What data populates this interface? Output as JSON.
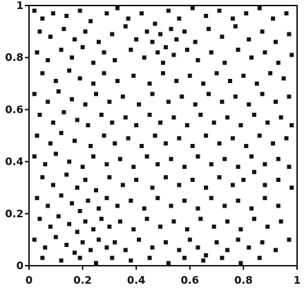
{
  "chart_data": {
    "type": "scatter",
    "title": "",
    "xlabel": "",
    "ylabel": "",
    "xlim": [
      0,
      1
    ],
    "ylim": [
      0,
      1
    ],
    "grid": false,
    "legend": "none",
    "marker_color": "#111111",
    "x_ticks": [
      {
        "value": 0,
        "label": "0"
      },
      {
        "value": 0.2,
        "label": "0.2"
      },
      {
        "value": 0.4,
        "label": "0.4"
      },
      {
        "value": 0.6,
        "label": "0.6"
      },
      {
        "value": 0.8,
        "label": "0.8"
      },
      {
        "value": 1,
        "label": "1"
      }
    ],
    "y_ticks": [
      {
        "value": 0,
        "label": "0"
      },
      {
        "value": 0.2,
        "label": "0.2"
      },
      {
        "value": 0.4,
        "label": "0.4"
      },
      {
        "value": 0.6,
        "label": "0.6"
      },
      {
        "value": 0.8,
        "label": "0.8"
      },
      {
        "value": 1,
        "label": "1"
      }
    ],
    "series": [
      {
        "points": [
          [
            0.02,
            0.98
          ],
          [
            0.05,
            0.95
          ],
          [
            0.09,
            0.97
          ],
          [
            0.14,
            0.96
          ],
          [
            0.19,
            0.98
          ],
          [
            0.23,
            0.94
          ],
          [
            0.29,
            0.97
          ],
          [
            0.33,
            0.99
          ],
          [
            0.37,
            0.95
          ],
          [
            0.42,
            0.97
          ],
          [
            0.47,
            0.93
          ],
          [
            0.52,
            0.98
          ],
          [
            0.56,
            0.95
          ],
          [
            0.61,
            0.99
          ],
          [
            0.66,
            0.96
          ],
          [
            0.71,
            0.98
          ],
          [
            0.76,
            0.95
          ],
          [
            0.81,
            0.97
          ],
          [
            0.86,
            0.99
          ],
          [
            0.91,
            0.95
          ],
          [
            0.96,
            0.97
          ],
          [
            0.04,
            0.9
          ],
          [
            0.08,
            0.88
          ],
          [
            0.13,
            0.91
          ],
          [
            0.17,
            0.87
          ],
          [
            0.21,
            0.9
          ],
          [
            0.26,
            0.86
          ],
          [
            0.31,
            0.89
          ],
          [
            0.36,
            0.92
          ],
          [
            0.4,
            0.87
          ],
          [
            0.44,
            0.9
          ],
          [
            0.46,
            0.86
          ],
          [
            0.49,
            0.89
          ],
          [
            0.51,
            0.84
          ],
          [
            0.53,
            0.91
          ],
          [
            0.55,
            0.87
          ],
          [
            0.58,
            0.9
          ],
          [
            0.62,
            0.86
          ],
          [
            0.67,
            0.91
          ],
          [
            0.72,
            0.88
          ],
          [
            0.77,
            0.92
          ],
          [
            0.82,
            0.87
          ],
          [
            0.87,
            0.9
          ],
          [
            0.92,
            0.86
          ],
          [
            0.97,
            0.89
          ],
          [
            0.03,
            0.82
          ],
          [
            0.07,
            0.79
          ],
          [
            0.12,
            0.83
          ],
          [
            0.16,
            0.8
          ],
          [
            0.2,
            0.84
          ],
          [
            0.24,
            0.78
          ],
          [
            0.28,
            0.82
          ],
          [
            0.32,
            0.79
          ],
          [
            0.38,
            0.83
          ],
          [
            0.43,
            0.8
          ],
          [
            0.48,
            0.82
          ],
          [
            0.5,
            0.78
          ],
          [
            0.54,
            0.81
          ],
          [
            0.59,
            0.83
          ],
          [
            0.63,
            0.79
          ],
          [
            0.68,
            0.82
          ],
          [
            0.73,
            0.78
          ],
          [
            0.78,
            0.83
          ],
          [
            0.83,
            0.8
          ],
          [
            0.88,
            0.82
          ],
          [
            0.93,
            0.78
          ],
          [
            0.98,
            0.81
          ],
          [
            0.05,
            0.74
          ],
          [
            0.1,
            0.71
          ],
          [
            0.15,
            0.75
          ],
          [
            0.19,
            0.72
          ],
          [
            0.24,
            0.7
          ],
          [
            0.28,
            0.74
          ],
          [
            0.33,
            0.71
          ],
          [
            0.39,
            0.73
          ],
          [
            0.45,
            0.7
          ],
          [
            0.5,
            0.74
          ],
          [
            0.55,
            0.71
          ],
          [
            0.6,
            0.73
          ],
          [
            0.65,
            0.7
          ],
          [
            0.7,
            0.74
          ],
          [
            0.75,
            0.71
          ],
          [
            0.8,
            0.73
          ],
          [
            0.85,
            0.7
          ],
          [
            0.9,
            0.74
          ],
          [
            0.95,
            0.72
          ],
          [
            0.02,
            0.66
          ],
          [
            0.07,
            0.63
          ],
          [
            0.11,
            0.67
          ],
          [
            0.16,
            0.64
          ],
          [
            0.21,
            0.62
          ],
          [
            0.25,
            0.66
          ],
          [
            0.3,
            0.63
          ],
          [
            0.35,
            0.65
          ],
          [
            0.41,
            0.62
          ],
          [
            0.46,
            0.66
          ],
          [
            0.52,
            0.63
          ],
          [
            0.57,
            0.65
          ],
          [
            0.62,
            0.62
          ],
          [
            0.67,
            0.66
          ],
          [
            0.72,
            0.63
          ],
          [
            0.77,
            0.65
          ],
          [
            0.82,
            0.62
          ],
          [
            0.87,
            0.66
          ],
          [
            0.92,
            0.63
          ],
          [
            0.97,
            0.65
          ],
          [
            0.04,
            0.58
          ],
          [
            0.09,
            0.55
          ],
          [
            0.13,
            0.59
          ],
          [
            0.18,
            0.56
          ],
          [
            0.22,
            0.54
          ],
          [
            0.27,
            0.58
          ],
          [
            0.31,
            0.55
          ],
          [
            0.36,
            0.57
          ],
          [
            0.4,
            0.54
          ],
          [
            0.45,
            0.58
          ],
          [
            0.49,
            0.55
          ],
          [
            0.54,
            0.57
          ],
          [
            0.59,
            0.54
          ],
          [
            0.64,
            0.58
          ],
          [
            0.69,
            0.55
          ],
          [
            0.74,
            0.57
          ],
          [
            0.79,
            0.54
          ],
          [
            0.84,
            0.58
          ],
          [
            0.89,
            0.55
          ],
          [
            0.94,
            0.57
          ],
          [
            0.98,
            0.54
          ],
          [
            0.03,
            0.5
          ],
          [
            0.08,
            0.47
          ],
          [
            0.12,
            0.51
          ],
          [
            0.17,
            0.48
          ],
          [
            0.23,
            0.46
          ],
          [
            0.28,
            0.5
          ],
          [
            0.32,
            0.47
          ],
          [
            0.37,
            0.49
          ],
          [
            0.42,
            0.46
          ],
          [
            0.47,
            0.5
          ],
          [
            0.51,
            0.47
          ],
          [
            0.56,
            0.49
          ],
          [
            0.61,
            0.46
          ],
          [
            0.66,
            0.5
          ],
          [
            0.71,
            0.47
          ],
          [
            0.76,
            0.49
          ],
          [
            0.81,
            0.46
          ],
          [
            0.86,
            0.5
          ],
          [
            0.91,
            0.47
          ],
          [
            0.96,
            0.49
          ],
          [
            0.02,
            0.42
          ],
          [
            0.06,
            0.39
          ],
          [
            0.1,
            0.43
          ],
          [
            0.15,
            0.4
          ],
          [
            0.2,
            0.38
          ],
          [
            0.24,
            0.42
          ],
          [
            0.29,
            0.39
          ],
          [
            0.34,
            0.41
          ],
          [
            0.39,
            0.38
          ],
          [
            0.44,
            0.42
          ],
          [
            0.48,
            0.39
          ],
          [
            0.53,
            0.41
          ],
          [
            0.58,
            0.38
          ],
          [
            0.63,
            0.42
          ],
          [
            0.68,
            0.39
          ],
          [
            0.73,
            0.41
          ],
          [
            0.78,
            0.38
          ],
          [
            0.83,
            0.42
          ],
          [
            0.88,
            0.39
          ],
          [
            0.93,
            0.41
          ],
          [
            0.97,
            0.38
          ],
          [
            0.05,
            0.34
          ],
          [
            0.09,
            0.31
          ],
          [
            0.14,
            0.35
          ],
          [
            0.18,
            0.3
          ],
          [
            0.21,
            0.33
          ],
          [
            0.25,
            0.29
          ],
          [
            0.3,
            0.34
          ],
          [
            0.35,
            0.31
          ],
          [
            0.4,
            0.33
          ],
          [
            0.46,
            0.3
          ],
          [
            0.51,
            0.34
          ],
          [
            0.56,
            0.31
          ],
          [
            0.61,
            0.33
          ],
          [
            0.66,
            0.3
          ],
          [
            0.71,
            0.34
          ],
          [
            0.76,
            0.31
          ],
          [
            0.8,
            0.33
          ],
          [
            0.84,
            0.36
          ],
          [
            0.88,
            0.31
          ],
          [
            0.93,
            0.33
          ],
          [
            0.98,
            0.3
          ],
          [
            0.03,
            0.26
          ],
          [
            0.07,
            0.23
          ],
          [
            0.12,
            0.27
          ],
          [
            0.16,
            0.24
          ],
          [
            0.19,
            0.21
          ],
          [
            0.22,
            0.25
          ],
          [
            0.26,
            0.22
          ],
          [
            0.29,
            0.26
          ],
          [
            0.33,
            0.23
          ],
          [
            0.38,
            0.25
          ],
          [
            0.43,
            0.22
          ],
          [
            0.48,
            0.26
          ],
          [
            0.53,
            0.23
          ],
          [
            0.58,
            0.25
          ],
          [
            0.63,
            0.22
          ],
          [
            0.68,
            0.26
          ],
          [
            0.73,
            0.23
          ],
          [
            0.78,
            0.25
          ],
          [
            0.83,
            0.22
          ],
          [
            0.88,
            0.26
          ],
          [
            0.93,
            0.23
          ],
          [
            0.04,
            0.18
          ],
          [
            0.08,
            0.15
          ],
          [
            0.11,
            0.19
          ],
          [
            0.15,
            0.16
          ],
          [
            0.18,
            0.13
          ],
          [
            0.21,
            0.17
          ],
          [
            0.24,
            0.14
          ],
          [
            0.27,
            0.18
          ],
          [
            0.3,
            0.15
          ],
          [
            0.34,
            0.17
          ],
          [
            0.39,
            0.14
          ],
          [
            0.44,
            0.18
          ],
          [
            0.49,
            0.15
          ],
          [
            0.54,
            0.17
          ],
          [
            0.59,
            0.14
          ],
          [
            0.64,
            0.18
          ],
          [
            0.69,
            0.15
          ],
          [
            0.74,
            0.17
          ],
          [
            0.79,
            0.14
          ],
          [
            0.84,
            0.18
          ],
          [
            0.89,
            0.15
          ],
          [
            0.94,
            0.17
          ],
          [
            0.02,
            0.1
          ],
          [
            0.06,
            0.07
          ],
          [
            0.1,
            0.11
          ],
          [
            0.14,
            0.08
          ],
          [
            0.17,
            0.05
          ],
          [
            0.2,
            0.09
          ],
          [
            0.23,
            0.06
          ],
          [
            0.26,
            0.1
          ],
          [
            0.29,
            0.07
          ],
          [
            0.32,
            0.09
          ],
          [
            0.36,
            0.06
          ],
          [
            0.41,
            0.1
          ],
          [
            0.46,
            0.07
          ],
          [
            0.51,
            0.09
          ],
          [
            0.56,
            0.06
          ],
          [
            0.6,
            0.1
          ],
          [
            0.63,
            0.07
          ],
          [
            0.66,
            0.04
          ],
          [
            0.7,
            0.09
          ],
          [
            0.74,
            0.06
          ],
          [
            0.78,
            0.1
          ],
          [
            0.82,
            0.07
          ],
          [
            0.87,
            0.09
          ],
          [
            0.92,
            0.06
          ],
          [
            0.97,
            0.1
          ],
          [
            0.05,
            0.03
          ],
          [
            0.12,
            0.02
          ],
          [
            0.19,
            0.03
          ],
          [
            0.25,
            0.01
          ],
          [
            0.31,
            0.03
          ],
          [
            0.38,
            0.02
          ],
          [
            0.45,
            0.03
          ],
          [
            0.52,
            0.01
          ],
          [
            0.58,
            0.03
          ],
          [
            0.65,
            0.02
          ],
          [
            0.72,
            0.03
          ],
          [
            0.79,
            0.01
          ],
          [
            0.86,
            0.03
          ]
        ]
      }
    ]
  }
}
